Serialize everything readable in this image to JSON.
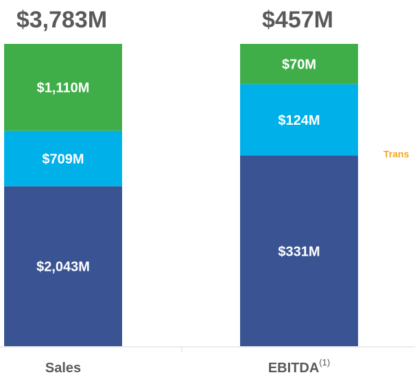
{
  "chart_data": {
    "type": "stacked_bar_100",
    "categories": [
      "Sales",
      "EBITDA"
    ],
    "category_notes": [
      null,
      "(1)"
    ],
    "series": [
      {
        "color": "#3a5493",
        "values": [
          2043,
          331
        ],
        "value_labels": [
          "$2,043M",
          "$331M"
        ]
      },
      {
        "color": "#00b0e8",
        "values": [
          709,
          124
        ],
        "value_labels": [
          "$709M",
          "$124M"
        ]
      },
      {
        "color": "#3fae49",
        "values": [
          1110,
          70
        ],
        "value_labels": [
          "$1,110M",
          "$70M"
        ]
      }
    ],
    "totals": [
      3783,
      457
    ],
    "total_labels": [
      "$3,783M",
      "$457M"
    ],
    "annotation": "Trans",
    "annotation_color": "#f5a623"
  }
}
